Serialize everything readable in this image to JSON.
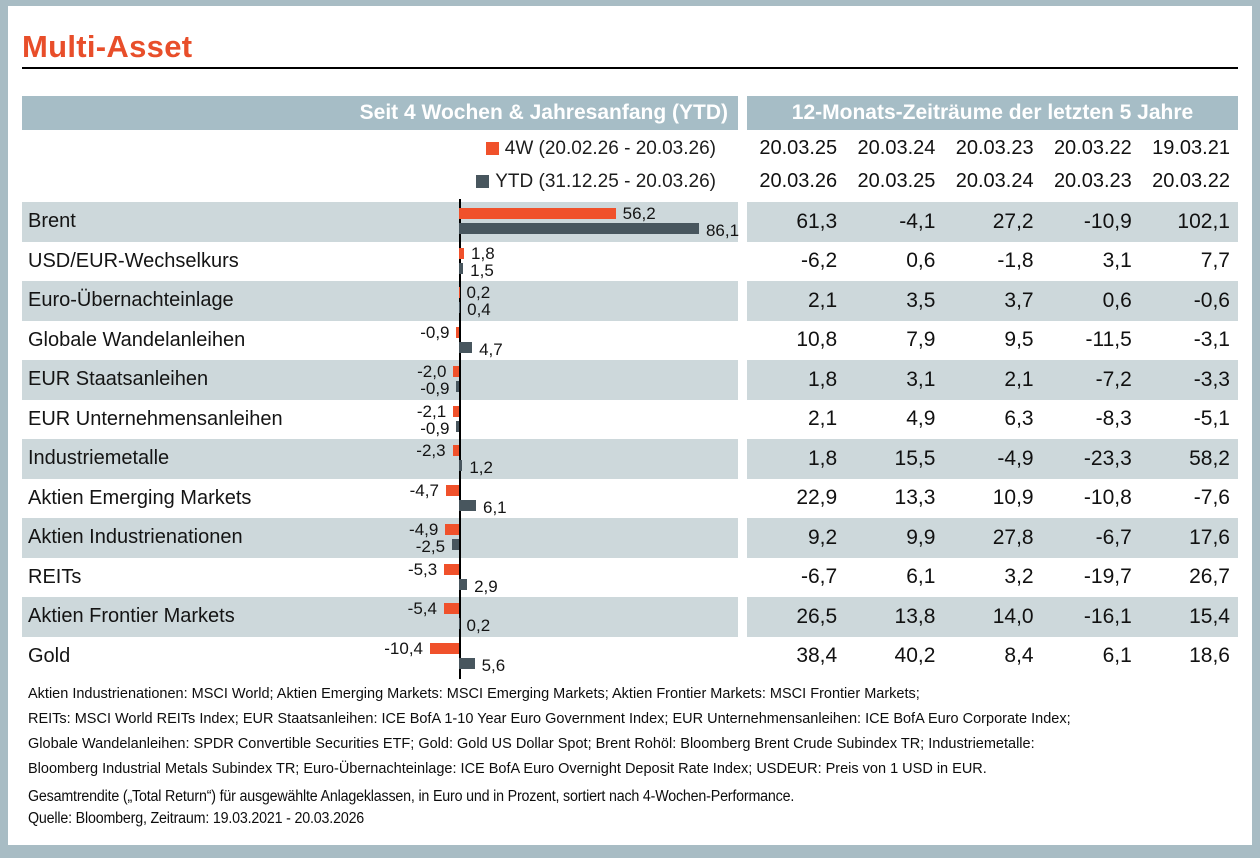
{
  "title": "Multi-Asset",
  "colors": {
    "title_orange": "#e84e2a",
    "bar_4w": "#f0512b",
    "bar_ytd": "#48565e",
    "header_bg": "#a6bdc6",
    "row_band": "#cdd8db",
    "frame": "#a8bcc4"
  },
  "headers": {
    "left_panel": "Seit 4 Wochen & Jahresanfang (YTD)",
    "right_panel": "12-Monats-Zeiträume der letzten 5 Jahre"
  },
  "legend": {
    "fourw": "4W (20.02.26 - 20.03.26)",
    "ytd": "YTD (31.12.25 - 20.03.26)"
  },
  "chart_data": {
    "type": "bar",
    "orientation": "horizontal",
    "value_unit": "percent",
    "decimal_separator": ",",
    "bar_value_range": [
      -10.4,
      86.1
    ],
    "series": [
      {
        "name": "4W",
        "period": "20.02.26 - 20.03.26",
        "color": "#f0512b"
      },
      {
        "name": "YTD",
        "period": "31.12.25 - 20.03.26",
        "color": "#48565e"
      }
    ],
    "column_headers": {
      "start_dates": [
        "20.03.25",
        "20.03.24",
        "20.03.23",
        "20.03.22",
        "19.03.21"
      ],
      "end_dates": [
        "20.03.26",
        "20.03.25",
        "20.03.24",
        "20.03.23",
        "20.03.22"
      ]
    },
    "rows": [
      {
        "label": "Brent",
        "fourw": 56.2,
        "ytd": 86.1,
        "twelve_month": [
          61.3,
          -4.1,
          27.2,
          -10.9,
          102.1
        ]
      },
      {
        "label": "USD/EUR-Wechselkurs",
        "fourw": 1.8,
        "ytd": 1.5,
        "twelve_month": [
          -6.2,
          0.6,
          -1.8,
          3.1,
          7.7
        ]
      },
      {
        "label": "Euro-Übernachteinlage",
        "fourw": 0.2,
        "ytd": 0.4,
        "twelve_month": [
          2.1,
          3.5,
          3.7,
          0.6,
          -0.6
        ]
      },
      {
        "label": "Globale Wandelanleihen",
        "fourw": -0.9,
        "ytd": 4.7,
        "twelve_month": [
          10.8,
          7.9,
          9.5,
          -11.5,
          -3.1
        ]
      },
      {
        "label": "EUR Staatsanleihen",
        "fourw": -2.0,
        "ytd": -0.9,
        "twelve_month": [
          1.8,
          3.1,
          2.1,
          -7.2,
          -3.3
        ]
      },
      {
        "label": "EUR Unternehmensanleihen",
        "fourw": -2.1,
        "ytd": -0.9,
        "twelve_month": [
          2.1,
          4.9,
          6.3,
          -8.3,
          -5.1
        ]
      },
      {
        "label": "Industriemetalle",
        "fourw": -2.3,
        "ytd": 1.2,
        "twelve_month": [
          1.8,
          15.5,
          -4.9,
          -23.3,
          58.2
        ]
      },
      {
        "label": "Aktien Emerging Markets",
        "fourw": -4.7,
        "ytd": 6.1,
        "twelve_month": [
          22.9,
          13.3,
          10.9,
          -10.8,
          -7.6
        ]
      },
      {
        "label": "Aktien Industrienationen",
        "fourw": -4.9,
        "ytd": -2.5,
        "twelve_month": [
          9.2,
          9.9,
          27.8,
          -6.7,
          17.6
        ]
      },
      {
        "label": "REITs",
        "fourw": -5.3,
        "ytd": 2.9,
        "twelve_month": [
          -6.7,
          6.1,
          3.2,
          -19.7,
          26.7
        ]
      },
      {
        "label": "Aktien Frontier Markets",
        "fourw": -5.4,
        "ytd": 0.2,
        "twelve_month": [
          26.5,
          13.8,
          14.0,
          -16.1,
          15.4
        ]
      },
      {
        "label": "Gold",
        "fourw": -10.4,
        "ytd": 5.6,
        "twelve_month": [
          38.4,
          40.2,
          8.4,
          6.1,
          18.6
        ]
      }
    ]
  },
  "footnotes": [
    "Aktien Industrienationen: MSCI World; Aktien Emerging Markets: MSCI Emerging Markets; Aktien Frontier Markets: MSCI Frontier Markets;",
    "REITs: MSCI World REITs Index; EUR Staatsanleihen: ICE BofA 1-10 Year Euro Government Index; EUR Unternehmensanleihen: ICE BofA Euro Corporate Index;",
    "Globale Wandelanleihen: SPDR Convertible Securities ETF; Gold: Gold US Dollar Spot; Brent Rohöl: Bloomberg Brent Crude Subindex TR; Industriemetalle:",
    "Bloomberg Industrial Metals Subindex TR; Euro-Übernachteinlage: ICE BofA Euro Overnight Deposit Rate Index; USDEUR: Preis von 1 USD in EUR."
  ],
  "notes": {
    "return_note": "Gesamtrendite („Total Return“) für ausgewählte Anlageklassen, in Euro und in Prozent, sortiert nach 4-Wochen-Performance.",
    "source": "Quelle: Bloomberg, Zeitraum: 19.03.2021 - 20.03.2026"
  }
}
